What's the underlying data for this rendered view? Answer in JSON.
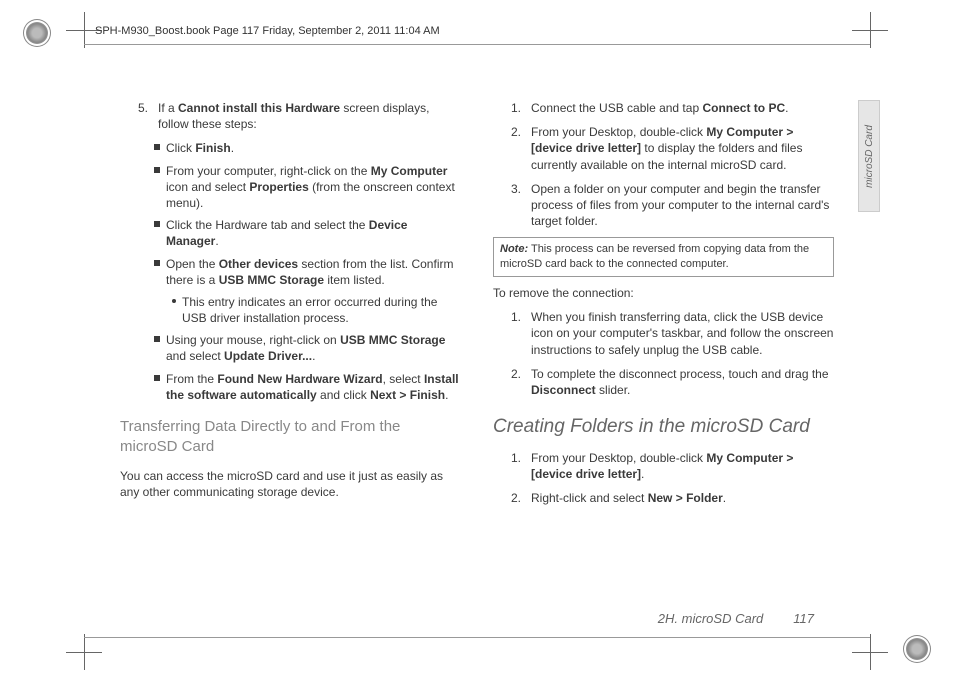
{
  "header": {
    "bookmark": "SPH-M930_Boost.book  Page 117  Friday, September 2, 2011  11:04 AM"
  },
  "left": {
    "step5_num": "5.",
    "step5": "If a ",
    "step5b": "Cannot install this Hardware",
    "step5c": " screen displays, follow these steps:",
    "a1": "Click ",
    "a1b": "Finish",
    "a1c": ".",
    "a2": "From your computer, right-click on the ",
    "a2b": "My Computer",
    "a2c": " icon and select ",
    "a2d": "Properties",
    "a2e": " (from the onscreen context menu).",
    "a3": "Click the Hardware tab and select the ",
    "a3b": "Device Manager",
    "a3c": ".",
    "a4": "Open the ",
    "a4b": "Other devices",
    "a4c": " section from the list. Confirm there is a ",
    "a4d": "USB MMC Storage",
    "a4e": " item listed.",
    "b1": "This entry indicates an error occurred during the USB driver installation process.",
    "a5": "Using your mouse, right-click on ",
    "a5b": "USB MMC Storage",
    "a5c": " and select ",
    "a5d": "Update Driver...",
    "a5e": ".",
    "a6": "From the ",
    "a6b": "Found New Hardware Wizard",
    "a6c": ", select ",
    "a6d": "Install the software automatically",
    "a6e": " and click ",
    "a6f": "Next > Finish",
    "a6g": ".",
    "h2": "Transferring Data Directly to and From the microSD Card",
    "p": "You can access the microSD card and use it just as easily as any other communicating storage device."
  },
  "right": {
    "r1n": "1.",
    "r1": "Connect the USB cable and tap ",
    "r1b": "Connect to PC",
    "r1c": ".",
    "r2n": "2.",
    "r2": "From your Desktop, double-click ",
    "r2b": "My Computer > [device drive letter]",
    "r2c": " to display the folders and files currently available on the internal microSD card.",
    "r3n": "3.",
    "r3": "Open a folder on your computer and begin the transfer process of files from your computer to the internal card's target folder.",
    "note_l": "Note:",
    "note": "This process can be reversed from copying data from the microSD card back to the connected computer.",
    "sub": "To remove the connection:",
    "s1n": "1.",
    "s1": "When you finish transferring data, click the USB device icon on your computer's taskbar, and follow the onscreen instructions to safely unplug the USB cable.",
    "s2n": "2.",
    "s2": "To complete the disconnect process, touch and drag the ",
    "s2b": "Disconnect",
    "s2c": " slider.",
    "h1": "Creating Folders in the microSD Card",
    "c1n": "1.",
    "c1": "From your Desktop, double-click ",
    "c1b": "My Computer > [device drive letter]",
    "c1c": ".",
    "c2n": "2.",
    "c2": "Right-click and select ",
    "c2b": "New > Folder",
    "c2c": "."
  },
  "footer": {
    "section": "2H. microSD Card",
    "page": "117"
  },
  "tab": "microSD Card"
}
